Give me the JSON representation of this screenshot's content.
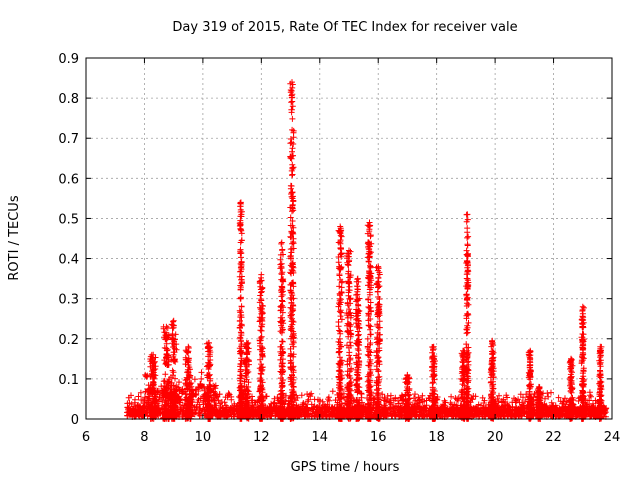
{
  "chart_data": {
    "type": "scatter",
    "title": "Day 319 of 2015, Rate Of TEC Index for receiver vale",
    "xlabel": "GPS time / hours",
    "ylabel": "ROTI / TECUs",
    "xlim": [
      6,
      24
    ],
    "ylim": [
      0,
      0.9
    ],
    "grid": true,
    "marker": "+",
    "color": "#ff0000",
    "x_ticks": [
      6,
      8,
      10,
      12,
      14,
      16,
      18,
      20,
      22,
      24
    ],
    "x_tick_labels": [
      "6",
      "8",
      "10",
      "12",
      "14",
      "16",
      "18",
      "20",
      "22",
      "24"
    ],
    "y_ticks": [
      0,
      0.1,
      0.2,
      0.3,
      0.4,
      0.5,
      0.6,
      0.7,
      0.8,
      0.9
    ],
    "y_tick_labels": [
      "0",
      "0.1",
      "0.2",
      "0.3",
      "0.4",
      "0.5",
      "0.6",
      "0.7",
      "0.8",
      "0.9"
    ],
    "data_range_x": [
      7.4,
      23.8
    ],
    "baseline_band": [
      0.005,
      0.03
    ],
    "spikes": [
      {
        "x": 8.3,
        "w": 0.2,
        "peak": 0.16
      },
      {
        "x": 8.75,
        "w": 0.25,
        "peak": 0.23
      },
      {
        "x": 9.0,
        "w": 0.2,
        "peak": 0.245
      },
      {
        "x": 9.5,
        "w": 0.2,
        "peak": 0.18
      },
      {
        "x": 10.2,
        "w": 0.12,
        "peak": 0.19
      },
      {
        "x": 11.3,
        "w": 0.08,
        "peak": 0.54
      },
      {
        "x": 11.5,
        "w": 0.15,
        "peak": 0.19
      },
      {
        "x": 12.0,
        "w": 0.12,
        "peak": 0.36
      },
      {
        "x": 12.7,
        "w": 0.1,
        "peak": 0.44
      },
      {
        "x": 13.05,
        "w": 0.12,
        "peak": 0.84
      },
      {
        "x": 14.7,
        "w": 0.12,
        "peak": 0.48
      },
      {
        "x": 15.0,
        "w": 0.15,
        "peak": 0.42
      },
      {
        "x": 15.3,
        "w": 0.12,
        "peak": 0.35
      },
      {
        "x": 15.7,
        "w": 0.12,
        "peak": 0.49
      },
      {
        "x": 16.0,
        "w": 0.12,
        "peak": 0.38
      },
      {
        "x": 17.0,
        "w": 0.15,
        "peak": 0.11
      },
      {
        "x": 17.9,
        "w": 0.12,
        "peak": 0.18
      },
      {
        "x": 18.9,
        "w": 0.12,
        "peak": 0.17
      },
      {
        "x": 19.05,
        "w": 0.08,
        "peak": 0.51
      },
      {
        "x": 19.9,
        "w": 0.1,
        "peak": 0.195
      },
      {
        "x": 21.2,
        "w": 0.1,
        "peak": 0.17
      },
      {
        "x": 21.5,
        "w": 0.1,
        "peak": 0.08
      },
      {
        "x": 22.6,
        "w": 0.1,
        "peak": 0.15
      },
      {
        "x": 23.0,
        "w": 0.08,
        "peak": 0.28
      },
      {
        "x": 23.6,
        "w": 0.08,
        "peak": 0.18
      }
    ]
  }
}
